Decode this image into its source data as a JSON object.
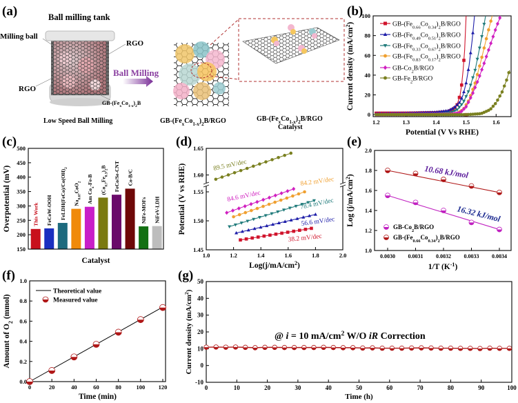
{
  "panel_labels": {
    "a": "(a)",
    "b": "(b)",
    "c": "(c)",
    "d": "(d)",
    "e": "(e)",
    "f": "(f)",
    "g": "(g)"
  },
  "panel_a": {
    "title": "Ball milling tank",
    "milling_ball": "Milling ball",
    "rgo_top": "RGO",
    "rgo_left": "RGO",
    "precursor": [
      [
        "GB-(Fe",
        ""
      ],
      [
        "x",
        "sub"
      ],
      [
        "Co",
        ""
      ],
      [
        "1-x",
        "sub"
      ],
      [
        ")",
        ""
      ],
      [
        "2",
        "sub"
      ],
      [
        "B",
        ""
      ]
    ],
    "arrow_label": "Ball Milling",
    "arrow_color": "#8a3fa0",
    "step1": "Low Speed Ball Milling",
    "step2": [
      [
        "GB-(Fe",
        ""
      ],
      [
        "x",
        "sub"
      ],
      [
        "Co",
        ""
      ],
      [
        "1-x",
        "sub"
      ],
      [
        ")",
        ""
      ],
      [
        "2",
        "sub"
      ],
      [
        "B/RGO",
        ""
      ]
    ],
    "step3": [
      [
        "GB-(Fe",
        ""
      ],
      [
        "x",
        "sub"
      ],
      [
        "Co",
        ""
      ],
      [
        "1-x",
        "sub"
      ],
      [
        ")",
        ""
      ],
      [
        "2",
        "sub"
      ],
      [
        "B/RGO",
        ""
      ]
    ],
    "step3_line2": "Catalyst",
    "box_color": "#b03030"
  },
  "chart_data": [
    {
      "panel": "b",
      "type": "line",
      "xlabel": "Potential (V Vs RHE)",
      "ylabel": [
        [
          "Current density (mA/cm",
          ""
        ],
        [
          "2",
          "sup"
        ],
        [
          ")",
          ""
        ]
      ],
      "xlim": [
        1.2,
        1.65
      ],
      "ylim": [
        0,
        100
      ],
      "xticks": [
        "1.2",
        "1.3",
        "1.4",
        "1.5",
        "1.6"
      ],
      "yticks": [
        "0",
        "20",
        "40",
        "60",
        "80",
        "100"
      ],
      "legend_position": "top-left",
      "series": [
        {
          "label": [
            [
              "GB-(Fe",
              ""
            ],
            [
              "0.66",
              "sub"
            ],
            [
              "Co",
              ""
            ],
            [
              "0.34",
              "sub"
            ],
            [
              ")",
              ""
            ],
            [
              "2",
              "sub"
            ],
            [
              "B/RGO",
              ""
            ]
          ],
          "color": "#d0142c",
          "marker": "square",
          "points": [
            [
              1.2,
              1.5
            ],
            [
              1.3,
              1.5
            ],
            [
              1.4,
              2
            ],
            [
              1.44,
              3
            ],
            [
              1.46,
              6
            ],
            [
              1.47,
              10
            ],
            [
              1.48,
              20
            ],
            [
              1.485,
              30
            ],
            [
              1.49,
              45
            ],
            [
              1.495,
              65
            ],
            [
              1.5,
              100
            ]
          ]
        },
        {
          "label": [
            [
              "GB-(Fe",
              ""
            ],
            [
              "0.49",
              "sub"
            ],
            [
              "Co",
              ""
            ],
            [
              "0.51",
              "sub"
            ],
            [
              ")",
              ""
            ],
            [
              "2",
              "sub"
            ],
            [
              "B/RGO",
              ""
            ]
          ],
          "color": "#1c1ca8",
          "marker": "triangle-up",
          "points": [
            [
              1.2,
              1
            ],
            [
              1.3,
              1.5
            ],
            [
              1.4,
              2.5
            ],
            [
              1.44,
              4
            ],
            [
              1.46,
              7
            ],
            [
              1.48,
              13
            ],
            [
              1.49,
              20
            ],
            [
              1.5,
              32
            ],
            [
              1.51,
              50
            ],
            [
              1.52,
              75
            ],
            [
              1.528,
              100
            ]
          ]
        },
        {
          "label": [
            [
              "GB-(Fe",
              ""
            ],
            [
              "0.33",
              "sub"
            ],
            [
              "Co",
              ""
            ],
            [
              "0.67",
              "sub"
            ],
            [
              ")",
              ""
            ],
            [
              "2",
              "sub"
            ],
            [
              "B/RGO",
              ""
            ]
          ],
          "color": "#1f7a7a",
          "marker": "triangle-down",
          "points": [
            [
              1.2,
              0
            ],
            [
              1.4,
              0.5
            ],
            [
              1.45,
              2
            ],
            [
              1.47,
              5
            ],
            [
              1.49,
              12
            ],
            [
              1.51,
              25
            ],
            [
              1.53,
              45
            ],
            [
              1.55,
              75
            ],
            [
              1.565,
              100
            ]
          ]
        },
        {
          "label": [
            [
              "GB-(Fe",
              ""
            ],
            [
              "0.83",
              "sub"
            ],
            [
              "Co",
              ""
            ],
            [
              "0.17",
              "sub"
            ],
            [
              ")",
              ""
            ],
            [
              "2",
              "sub"
            ],
            [
              "B/RGO",
              ""
            ]
          ],
          "color": "#f0a030",
          "marker": "circle",
          "points": [
            [
              1.2,
              0
            ],
            [
              1.45,
              0.5
            ],
            [
              1.47,
              1.5
            ],
            [
              1.49,
              5
            ],
            [
              1.51,
              15
            ],
            [
              1.53,
              32
            ],
            [
              1.55,
              55
            ],
            [
              1.57,
              80
            ],
            [
              1.587,
              100
            ]
          ]
        },
        {
          "label": [
            [
              "GB-Co",
              ""
            ],
            [
              "2",
              "sub"
            ],
            [
              "B/RGO",
              ""
            ]
          ],
          "color": "#d020c0",
          "marker": "diamond",
          "points": [
            [
              1.2,
              0
            ],
            [
              1.45,
              0.5
            ],
            [
              1.48,
              2
            ],
            [
              1.5,
              8
            ],
            [
              1.52,
              20
            ],
            [
              1.54,
              35
            ],
            [
              1.56,
              52
            ],
            [
              1.58,
              70
            ],
            [
              1.6,
              88
            ],
            [
              1.615,
              100
            ]
          ]
        },
        {
          "label": [
            [
              "GB-Fe",
              ""
            ],
            [
              "2",
              "sub"
            ],
            [
              "B/RGO",
              ""
            ]
          ],
          "color": "#7a8020",
          "marker": "circle",
          "points": [
            [
              1.2,
              0
            ],
            [
              1.5,
              0
            ],
            [
              1.55,
              1
            ],
            [
              1.58,
              5
            ],
            [
              1.6,
              12
            ],
            [
              1.62,
              23
            ],
            [
              1.635,
              35
            ],
            [
              1.645,
              45
            ]
          ]
        }
      ]
    },
    {
      "panel": "c",
      "type": "bar",
      "xlabel": "Catalyst",
      "ylabel": "Overpotential (mV)",
      "ylim": [
        150,
        500
      ],
      "yticks": [
        "150",
        "200",
        "250",
        "300",
        "350",
        "400",
        "450",
        "500"
      ],
      "categories": [
        [
          [
            "This Work",
            ""
          ]
        ],
        [
          [
            "FeCoW-OOH",
            ""
          ]
        ],
        [
          [
            "FeLDH(FeCo)/Co(OH)",
            ""
          ],
          [
            "2",
            "sub"
          ]
        ],
        [
          [
            "Na",
            ""
          ],
          [
            "0.67",
            "sub"
          ],
          [
            "CoO",
            ""
          ],
          [
            "2",
            "sub"
          ]
        ],
        [
          [
            "Am Co",
            ""
          ],
          [
            "x",
            "sub"
          ],
          [
            "-Fe-B",
            ""
          ]
        ],
        [
          [
            "(Co",
            ""
          ],
          [
            "0.7",
            "sub"
          ],
          [
            "Fe",
            ""
          ],
          [
            "0.3",
            "sub"
          ],
          [
            ")",
            ""
          ],
          [
            "2",
            "sub"
          ],
          [
            "B",
            ""
          ]
        ],
        [
          [
            "FeCo/Se-CNT",
            ""
          ]
        ],
        [
          [
            "Co-B/C",
            ""
          ]
        ],
        [
          [
            "NiFe-MOFs",
            ""
          ]
        ],
        [
          [
            "NiFeV-LDH",
            ""
          ]
        ]
      ],
      "values": [
        220,
        222,
        241,
        290,
        297,
        329,
        339,
        360,
        229,
        230
      ],
      "colors": [
        "#c8101c",
        "#1b2fc0",
        "#1d6a7e",
        "#f08a0a",
        "#c81ec8",
        "#7a7a10",
        "#6a0a6a",
        "#6e0808",
        "#137013",
        "#bdbdbd"
      ],
      "highlight_label_color": "#c8101c"
    },
    {
      "panel": "d",
      "type": "line",
      "xlabel": [
        [
          "Log(j/mA/cm",
          ""
        ],
        [
          "2",
          "sup"
        ],
        [
          ")",
          ""
        ]
      ],
      "ylabel": "Potential (V vs RHE)",
      "xlim": [
        1.0,
        2.0
      ],
      "ylim": [
        1.45,
        1.65
      ],
      "y_break": [
        1.56,
        1.58
      ],
      "xticks": [
        "1.0",
        "1.2",
        "1.4",
        "1.6",
        "1.8",
        "2.0"
      ],
      "yticks": [
        "1.45",
        "1.50",
        "1.55",
        "1.60",
        "1.65"
      ],
      "series": [
        {
          "annotation": "89.5 mV/dec",
          "color": "#7a8020",
          "marker": "circle",
          "x": [
            1.07,
            1.62
          ],
          "y": [
            1.592,
            1.641
          ]
        },
        {
          "annotation": "84.6 mV/dec",
          "color": "#d020c0",
          "marker": "diamond",
          "x": [
            1.15,
            1.64
          ],
          "y": [
            1.514,
            1.555
          ]
        },
        {
          "annotation": "84.2 mV/dec",
          "color": "#f0a030",
          "marker": "circle",
          "x": [
            1.2,
            1.72
          ],
          "y": [
            1.507,
            1.55
          ]
        },
        {
          "annotation": "78.4 mV/dec",
          "color": "#1f7a7a",
          "marker": "triangle-down",
          "x": [
            1.17,
            1.79
          ],
          "y": [
            1.49,
            1.535
          ]
        },
        {
          "annotation": "56.6 mV/dec",
          "color": "#1c1ca8",
          "marker": "triangle-up",
          "x": [
            1.22,
            1.8
          ],
          "y": [
            1.479,
            1.511
          ]
        },
        {
          "annotation": "38.2 mV/dec",
          "color": "#d0142c",
          "marker": "square",
          "x": [
            1.25,
            1.77
          ],
          "y": [
            1.467,
            1.487
          ]
        }
      ]
    },
    {
      "panel": "e",
      "type": "scatter",
      "xlabel": [
        [
          "1/T (K",
          ""
        ],
        [
          "-1",
          "sup"
        ],
        [
          ")",
          ""
        ]
      ],
      "ylabel": [
        [
          "Log (j/mA/cm",
          ""
        ],
        [
          "2",
          "sup"
        ],
        [
          ")",
          ""
        ]
      ],
      "ylim": [
        1.0,
        2.0
      ],
      "xticks": [
        "0.0030",
        "0.0031",
        "0.0032",
        "0.0033",
        "0.0034"
      ],
      "yticks": [
        "1.0",
        "1.2",
        "1.4",
        "1.6",
        "1.8",
        "2.0"
      ],
      "legend_position": "bottom-left",
      "x": [
        0.003,
        0.0031,
        0.0032,
        0.0033,
        0.0034
      ],
      "series": [
        {
          "label": [
            [
              "GB-Co",
              ""
            ],
            [
              "2",
              "sub"
            ],
            [
              "B/RGO",
              ""
            ]
          ],
          "color": "#c020c0",
          "values": [
            1.55,
            1.48,
            1.4,
            1.28,
            1.21
          ],
          "annotation": "16.32 kJ/mol",
          "annotation_color": "#1c2a90"
        },
        {
          "label": [
            [
              "GB-(Fe",
              ""
            ],
            [
              "0.66",
              "sub"
            ],
            [
              "Co",
              ""
            ],
            [
              "0.34",
              "sub"
            ],
            [
              ")",
              ""
            ],
            [
              "2",
              "sub"
            ],
            [
              "B/RGO",
              ""
            ]
          ],
          "color": "#b01818",
          "values": [
            1.8,
            1.77,
            1.71,
            1.645,
            1.58
          ],
          "annotation": "10.68 kJ/mol",
          "annotation_color": "#5a1a9a"
        }
      ]
    },
    {
      "panel": "f",
      "type": "scatter",
      "xlabel": "Time (min)",
      "ylabel": [
        [
          "Amount of O",
          ""
        ],
        [
          "2",
          "sub"
        ],
        [
          " (mmol)",
          ""
        ]
      ],
      "xlim": [
        0,
        120
      ],
      "ylim": [
        0,
        1.0
      ],
      "xticks": [
        "0",
        "20",
        "40",
        "60",
        "80",
        "100",
        "120"
      ],
      "yticks": [
        "0.0",
        "0.2",
        "0.4",
        "0.6",
        "0.8",
        "1.0"
      ],
      "legend_position": "top-left",
      "theoretical": {
        "label": "Theoretical value",
        "x": [
          0,
          120
        ],
        "y": [
          0,
          0.74
        ],
        "color": "#000000"
      },
      "measured": {
        "label": "Measured value",
        "x": [
          0,
          20,
          40,
          60,
          80,
          100,
          120
        ],
        "y": [
          0,
          0.11,
          0.245,
          0.37,
          0.49,
          0.615,
          0.735
        ],
        "color": "#b01818"
      }
    },
    {
      "panel": "g",
      "type": "line",
      "xlabel": "Time (h)",
      "ylabel": [
        [
          "Current density (mA/cm",
          ""
        ],
        [
          "2",
          "sup"
        ],
        [
          ")",
          ""
        ]
      ],
      "xlim": [
        0,
        100
      ],
      "ylim": [
        -10,
        50
      ],
      "xticks": [
        "0",
        "10",
        "20",
        "30",
        "40",
        "50",
        "60",
        "70",
        "80",
        "90",
        "100"
      ],
      "yticks": [
        "-10",
        "0",
        "10",
        "20",
        "30",
        "40",
        "50"
      ],
      "annotation": [
        [
          "@ ",
          ""
        ],
        [
          "i",
          "i"
        ],
        [
          "  = 10 mA/cm",
          ""
        ],
        [
          "2",
          "sup"
        ],
        [
          "   W/O ",
          ""
        ],
        [
          "iR",
          "i"
        ],
        [
          " Correction",
          ""
        ]
      ],
      "color": "#b01818",
      "x": [
        0,
        3.2,
        6.4,
        9.6,
        12.8,
        16,
        19.2,
        22.4,
        25.6,
        28.8,
        32,
        35.2,
        38.4,
        41.6,
        44.8,
        48,
        51.2,
        54.4,
        57.6,
        60.8,
        64,
        67.2,
        70.4,
        73.6,
        76.8,
        80,
        83.2,
        86.4,
        89.6,
        92.8,
        96,
        99.2
      ],
      "y": [
        10.9,
        11.0,
        10.9,
        11.0,
        10.8,
        10.6,
        10.8,
        10.8,
        10.7,
        10.7,
        10.7,
        10.7,
        10.8,
        10.7,
        10.6,
        10.6,
        10.4,
        10.5,
        10.3,
        10.3,
        10.3,
        10.4,
        10.5,
        10.4,
        10.3,
        10.3,
        10.2,
        10.2,
        10.1,
        10.3,
        10.2,
        10.2
      ]
    }
  ]
}
